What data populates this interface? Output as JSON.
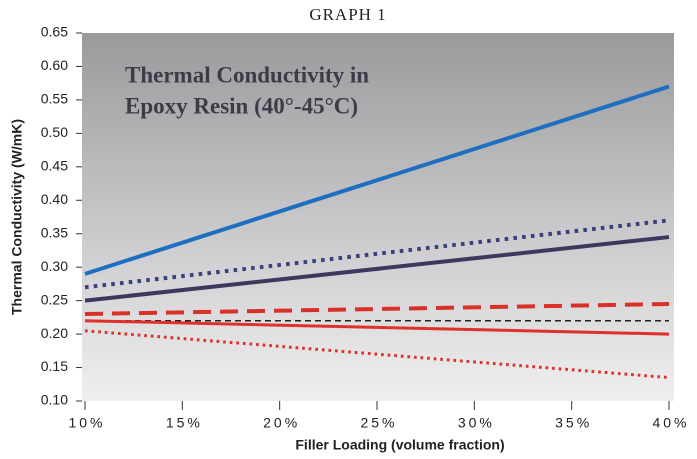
{
  "header": "GRAPH 1",
  "chart_data": {
    "type": "line",
    "title": [
      "Thermal Conductivity in",
      "Epoxy Resin (40°-45°C)"
    ],
    "x_label": "Filler Loading (volume fraction)",
    "y_label": "Thermal Conductivity (W/mK)",
    "xlim": [
      10,
      40
    ],
    "xticks": [
      {
        "value": 10,
        "label": "10%"
      },
      {
        "value": 15,
        "label": "15%"
      },
      {
        "value": 20,
        "label": "20%"
      },
      {
        "value": 25,
        "label": "25%"
      },
      {
        "value": 30,
        "label": "30%"
      },
      {
        "value": 35,
        "label": "35%"
      },
      {
        "value": 40,
        "label": "40%"
      }
    ],
    "ylim": [
      0.1,
      0.65
    ],
    "yticks": [
      {
        "value": 0.1,
        "label": "0.10"
      },
      0.15,
      {
        "value": 0.2,
        "label": "0.20"
      },
      0.25,
      {
        "value": 0.3,
        "label": "0.30"
      },
      0.35,
      {
        "value": 0.4,
        "label": "0.40"
      },
      0.45,
      {
        "value": 0.5,
        "label": "0.50"
      },
      0.55,
      {
        "value": 0.6,
        "label": "0.60"
      },
      0.65
    ],
    "series": [
      {
        "color": "#1f6fc0",
        "dash": "solid",
        "width": 4,
        "x": [
          10,
          40
        ],
        "values": [
          0.29,
          0.57
        ]
      },
      {
        "color": "#3a3f7e",
        "dash": "dotted",
        "width": 4,
        "x": [
          10,
          40
        ],
        "values": [
          0.27,
          0.37
        ]
      },
      {
        "color": "#3f3760",
        "dash": "solid",
        "width": 4,
        "x": [
          10,
          40
        ],
        "values": [
          0.25,
          0.345
        ]
      },
      {
        "color": "#d9302a",
        "dash": "dashed",
        "width": 4,
        "x": [
          10,
          40
        ],
        "values": [
          0.23,
          0.245
        ]
      },
      {
        "color": "#222222",
        "dash": "dashed",
        "width": 1.5,
        "x": [
          10,
          40
        ],
        "values": [
          0.22,
          0.22
        ]
      },
      {
        "color": "#e0302a",
        "dash": "solid",
        "width": 3,
        "x": [
          10,
          40
        ],
        "values": [
          0.22,
          0.2
        ]
      },
      {
        "color": "#e0302a",
        "dash": "dotted",
        "width": 3,
        "x": [
          10,
          40
        ],
        "values": [
          0.205,
          0.135
        ]
      }
    ]
  }
}
